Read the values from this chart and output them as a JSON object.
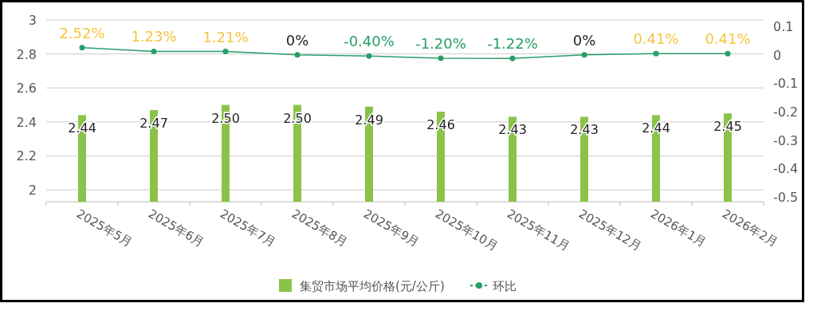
{
  "chart_data": {
    "type": "bar",
    "categories": [
      "2025年5月",
      "2025年6月",
      "2025年7月",
      "2025年8月",
      "2025年9月",
      "2025年10月",
      "2025年11月",
      "2025年12月",
      "2026年1月",
      "2026年2月"
    ],
    "series": [
      {
        "name": "集贸市场平均价格(元/公斤)",
        "color": "#8bc34a",
        "values": [
          2.44,
          2.47,
          2.5,
          2.5,
          2.49,
          2.46,
          2.43,
          2.43,
          2.44,
          2.45
        ],
        "value_labels": [
          "2.44",
          "2.47",
          "2.50",
          "2.50",
          "2.49",
          "2.46",
          "2.43",
          "2.43",
          "2.44",
          "2.45"
        ]
      },
      {
        "name": "环比",
        "type": "line",
        "axis": "y2",
        "color": "#26a069",
        "marker": "circle",
        "values": [
          0.0252,
          0.0123,
          0.0121,
          0,
          -0.004,
          -0.012,
          -0.0122,
          0,
          0.0041,
          0.0041
        ],
        "value_labels": [
          "2.52%",
          "1.23%",
          "1.21%",
          "0%",
          "-0.40%",
          "-1.20%",
          "-1.22%",
          "0%",
          "0.41%",
          "0.41%"
        ]
      }
    ],
    "ylim": [
      1.93,
      3
    ],
    "yticks": [
      2,
      2.2,
      2.4,
      2.6,
      2.8,
      3
    ],
    "y2lim": [
      -0.517,
      0.123
    ],
    "y2ticks": [
      -0.5,
      -0.4,
      -0.3,
      -0.2,
      -0.1,
      0,
      0.1
    ],
    "grid": "y",
    "legend": "bottom"
  }
}
